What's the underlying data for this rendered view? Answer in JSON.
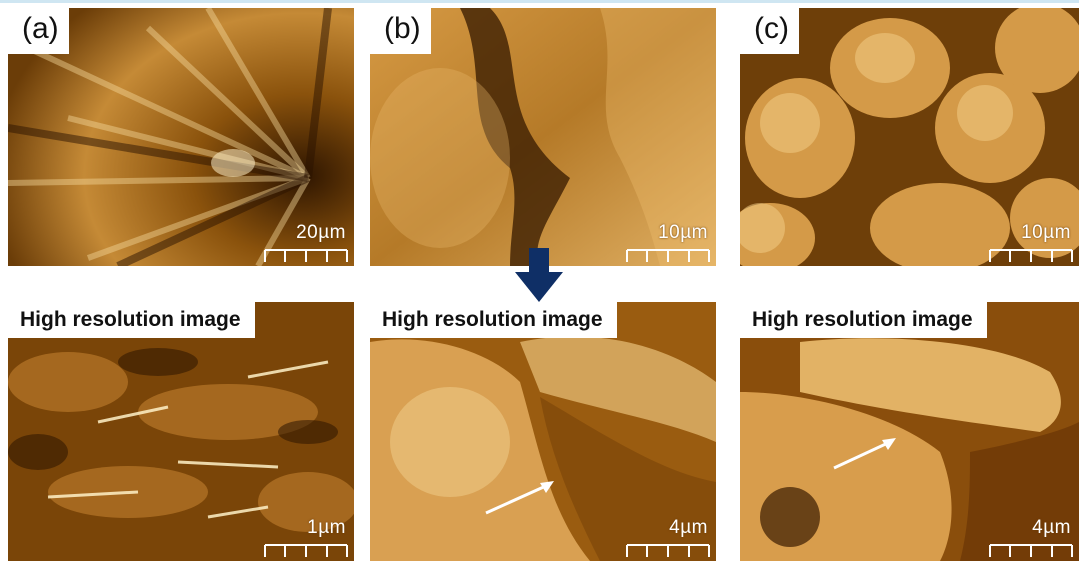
{
  "panels": {
    "a_top": {
      "label": "(a)",
      "scale": "20µm"
    },
    "b_top": {
      "label": "(b)",
      "scale": "10µm"
    },
    "c_top": {
      "label": "(c)",
      "scale": "10µm"
    },
    "a_bottom": {
      "caption": "High resolution image",
      "scale": "1µm"
    },
    "b_bottom": {
      "caption": "High resolution image",
      "scale": "4µm"
    },
    "c_bottom": {
      "caption": "High resolution image",
      "scale": "4µm"
    }
  },
  "colors": {
    "afm_dark": "#3a1e02",
    "afm_mid": "#a0620f",
    "afm_light": "#f2d9a0",
    "arrow_navy": "#0f2f66"
  },
  "icons": {
    "down_arrow": "down-arrow-icon",
    "white_arrow": "white-pointer-arrow-icon"
  }
}
